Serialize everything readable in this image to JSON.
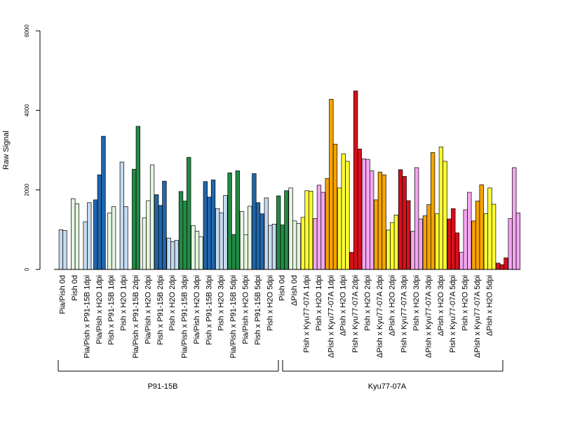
{
  "chart_data": {
    "type": "bar",
    "ylabel": "Raw Signal",
    "ylim": [
      0,
      6000
    ],
    "yticks": [
      0,
      2000,
      4000,
      6000
    ],
    "groups": [
      {
        "name": "P91-15B",
        "from": 0,
        "to": 17
      },
      {
        "name": "Kyu77-07A",
        "from": 18,
        "to": 35
      }
    ],
    "categories": [
      {
        "label": "Pia/Pish 0d",
        "color": "#c6dbef",
        "values": [
          1000,
          980
        ]
      },
      {
        "label": "Pish 0d",
        "color": "#e5f5e0",
        "values": [
          1780,
          1650
        ]
      },
      {
        "label": "Pia/Pish x P91-15B 1dpi",
        "color": "#c6dbef",
        "values": [
          1200,
          1680
        ]
      },
      {
        "label": "Pia/Pish x H2O 1dpi",
        "color": "#2166ac",
        "values": [
          1750,
          2380,
          3350
        ]
      },
      {
        "label": "Pish x P91-15B 1dpi",
        "color": "#e5f5e0",
        "values": [
          1420,
          1580
        ]
      },
      {
        "label": "Pish x H2O 1dpi",
        "color": "#c6dbef",
        "values": [
          2700,
          1580
        ]
      },
      {
        "label": "Pia/Pish x P91-15B 2dpi",
        "color": "#238b45",
        "values": [
          2520,
          3600
        ]
      },
      {
        "label": "Pia/Pish x H2O 2dpi",
        "color": "#e5f5e0",
        "values": [
          1300,
          1730,
          2630
        ]
      },
      {
        "label": "Pish x P91-15B 2dpi",
        "color": "#2166ac",
        "values": [
          1880,
          1610,
          2220
        ]
      },
      {
        "label": "Pish x H2O 2dpi",
        "color": "#c6dbef",
        "values": [
          790,
          700,
          730
        ]
      },
      {
        "label": "Pia/Pish x P91-15B 3dpi",
        "color": "#238b45",
        "values": [
          1960,
          1720,
          2820
        ]
      },
      {
        "label": "Pia/Pish x H2O 3dpi",
        "color": "#e5f5e0",
        "values": [
          1100,
          960,
          820
        ]
      },
      {
        "label": "Pish x P91-15B 3dpi",
        "color": "#2166ac",
        "values": [
          2210,
          1820,
          2250
        ]
      },
      {
        "label": "Pish x H2O 3dpi",
        "color": "#c6dbef",
        "values": [
          1530,
          1420,
          1860
        ]
      },
      {
        "label": "Pia/Pish x P91-15B 5dpi",
        "color": "#238b45",
        "values": [
          2430,
          880,
          2480
        ]
      },
      {
        "label": "Pia/Pish x H2O 5dpi",
        "color": "#e5f5e0",
        "values": [
          1460,
          870,
          1590
        ]
      },
      {
        "label": "Pish x P91-15B 5dpi",
        "color": "#2166ac",
        "values": [
          2410,
          1680,
          1400
        ]
      },
      {
        "label": "Pish x H2O 5dpi",
        "color": "#c6dbef",
        "values": [
          1800,
          1110,
          1140
        ]
      },
      {
        "label": "Pish 0d",
        "color": "#238b45",
        "values": [
          1850,
          1120,
          1980
        ]
      },
      {
        "label": "ΔPish 0d",
        "color": "#e5f5e0",
        "values": [
          2050,
          1220,
          1160
        ]
      },
      {
        "label": "Pish x Kyu77-07A 1dpi",
        "color": "#ffff33",
        "values": [
          1310,
          1980,
          1970
        ]
      },
      {
        "label": "Pish x H2O 1dpi",
        "color": "#f4a6f0",
        "values": [
          1280,
          2120,
          1940
        ]
      },
      {
        "label": "ΔPish x Kyu77-07A 1dpi",
        "color": "#f5a300",
        "values": [
          2290,
          4280,
          3150
        ]
      },
      {
        "label": "ΔPish x H2O 1dpi",
        "color": "#ffff33",
        "values": [
          2050,
          2910,
          2720
        ]
      },
      {
        "label": "Pish x Kyu77-07A 2dpi",
        "color": "#d7101a",
        "values": [
          430,
          4490,
          3030
        ]
      },
      {
        "label": "Pish x H2O 2dpi",
        "color": "#f4a6f0",
        "values": [
          2780,
          2770,
          2480
        ]
      },
      {
        "label": "ΔPish x Kyu77-07A 2dpi",
        "color": "#f5a300",
        "values": [
          1750,
          2450,
          2380
        ]
      },
      {
        "label": "ΔPish x H2O 2dpi",
        "color": "#ffff33",
        "values": [
          990,
          1180,
          1370
        ]
      },
      {
        "label": "Pish x Kyu77-07A 3dpi",
        "color": "#d7101a",
        "values": [
          2510,
          2340,
          1730
        ]
      },
      {
        "label": "Pish x H2O 3dpi",
        "color": "#f4a6f0",
        "values": [
          960,
          2560,
          1270
        ]
      },
      {
        "label": "ΔPish x Kyu77-07A 3dpi",
        "color": "#f5a300",
        "values": [
          1350,
          1630,
          2940
        ]
      },
      {
        "label": "ΔPish x H2O 3dpi",
        "color": "#ffff33",
        "values": [
          1400,
          3080,
          2720
        ]
      },
      {
        "label": "Pish x Kyu77-07A 5dpi",
        "color": "#d7101a",
        "values": [
          1270,
          1530,
          920
        ]
      },
      {
        "label": "Pish x H2O 5dpi",
        "color": "#f4a6f0",
        "values": [
          430,
          1500,
          1940
        ]
      },
      {
        "label": "ΔPish x Kyu77-07A 5dpi",
        "color": "#f5a300",
        "values": [
          1220,
          1720,
          2130
        ]
      },
      {
        "label": "ΔPish x H2O 5dpi",
        "color": "#ffff33",
        "values": [
          1400,
          2050,
          1640
        ]
      },
      {
        "label": "",
        "color": "#d7101a",
        "values": [
          160,
          120,
          290
        ]
      },
      {
        "label": "",
        "color": "#f4a6f0",
        "values": [
          1280,
          2560,
          1420
        ]
      }
    ]
  }
}
